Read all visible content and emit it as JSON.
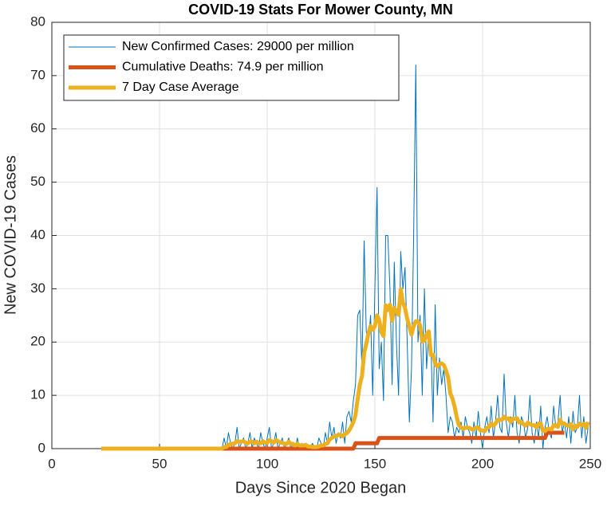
{
  "chart_data": {
    "type": "line",
    "title": "COVID-19 Stats For Mower County, MN",
    "xlabel": "Days Since 2020 Began",
    "ylabel": "New COVID-19 Cases",
    "x": [
      23,
      24,
      25,
      26,
      27,
      28,
      29,
      30,
      31,
      32,
      33,
      34,
      35,
      36,
      37,
      38,
      39,
      40,
      41,
      42,
      43,
      44,
      45,
      46,
      47,
      48,
      49,
      50,
      51,
      52,
      53,
      54,
      55,
      56,
      57,
      58,
      59,
      60,
      61,
      62,
      63,
      64,
      65,
      66,
      67,
      68,
      69,
      70,
      71,
      72,
      73,
      74,
      75,
      76,
      77,
      78,
      79,
      80,
      81,
      82,
      83,
      84,
      85,
      86,
      87,
      88,
      89,
      90,
      91,
      92,
      93,
      94,
      95,
      96,
      97,
      98,
      99,
      100,
      101,
      102,
      103,
      104,
      105,
      106,
      107,
      108,
      109,
      110,
      111,
      112,
      113,
      114,
      115,
      116,
      117,
      118,
      119,
      120,
      121,
      122,
      123,
      124,
      125,
      126,
      127,
      128,
      129,
      130,
      131,
      132,
      133,
      134,
      135,
      136,
      137,
      138,
      139,
      140,
      141,
      142,
      143,
      144,
      145,
      146,
      147,
      148,
      149,
      150,
      151,
      152,
      153,
      154,
      155,
      156,
      157,
      158,
      159,
      160,
      161,
      162,
      163,
      164,
      165,
      166,
      167,
      168,
      169,
      170,
      171,
      172,
      173,
      174,
      175,
      176,
      177,
      178,
      179,
      180,
      181,
      182,
      183,
      184,
      185,
      186,
      187,
      188,
      189,
      190,
      191,
      192,
      193,
      194,
      195,
      196,
      197,
      198,
      199,
      200,
      201,
      202,
      203,
      204,
      205,
      206,
      207,
      208,
      209,
      210,
      211,
      212,
      213,
      214,
      215,
      216,
      217,
      218,
      219,
      220,
      221,
      222,
      223,
      224,
      225,
      226,
      227,
      228,
      229,
      230,
      231,
      232,
      233,
      234,
      235,
      236,
      237,
      238,
      239,
      240,
      241,
      242,
      243,
      244,
      245,
      246,
      247,
      248,
      249
    ],
    "series": [
      {
        "name": "New Confirmed Cases: 29000 per million",
        "color": "#0072BD",
        "width": 1,
        "values": [
          0,
          0,
          0,
          0,
          0,
          0,
          0,
          0,
          0,
          0,
          0,
          0,
          0,
          0,
          0,
          0,
          0,
          0,
          0,
          0,
          0,
          0,
          0,
          0,
          0,
          0,
          0,
          0,
          0,
          0,
          0,
          0,
          0,
          0,
          0,
          0,
          0,
          0,
          0,
          0,
          0,
          0,
          0,
          0,
          0,
          0,
          0,
          0,
          0,
          0,
          0,
          0,
          0,
          0,
          0,
          0,
          0,
          2,
          0,
          3,
          1,
          0,
          1,
          4,
          0,
          1,
          2,
          0,
          1,
          3,
          0,
          2,
          1,
          0,
          3,
          1,
          0,
          2,
          4,
          0,
          1,
          3,
          0,
          1,
          2,
          0,
          1,
          2,
          0,
          1,
          0,
          2,
          0,
          1,
          0,
          1,
          0,
          0,
          1,
          0,
          0,
          2,
          1,
          0,
          3,
          1,
          5,
          2,
          4,
          1,
          3,
          2,
          5,
          1,
          6,
          7,
          5,
          9,
          12,
          25,
          26,
          15,
          39,
          22,
          20,
          25,
          10,
          30,
          49,
          15,
          20,
          9,
          40,
          40,
          30,
          12,
          35,
          20,
          10,
          37,
          30,
          34,
          20,
          5,
          15,
          40,
          72,
          20,
          25,
          10,
          30,
          15,
          22,
          20,
          5,
          27,
          10,
          17,
          12,
          15,
          10,
          3,
          6,
          5,
          2,
          4,
          3,
          5,
          2,
          6,
          4,
          3,
          1,
          5,
          2,
          7,
          3,
          0,
          4,
          6,
          3,
          8,
          2,
          5,
          10,
          4,
          3,
          14,
          5,
          2,
          6,
          4,
          10,
          3,
          1,
          6,
          5,
          2,
          4,
          10,
          3,
          1,
          5,
          2,
          8,
          0,
          4,
          6,
          3,
          2,
          8,
          4,
          5,
          10,
          3,
          5,
          2,
          6,
          1,
          7,
          3,
          4,
          10,
          2,
          6,
          1,
          4
        ]
      },
      {
        "name": "Cumulative Deaths: 74.9 per million",
        "color": "#D95319",
        "width": 5,
        "values": [
          0,
          0,
          0,
          0,
          0,
          0,
          0,
          0,
          0,
          0,
          0,
          0,
          0,
          0,
          0,
          0,
          0,
          0,
          0,
          0,
          0,
          0,
          0,
          0,
          0,
          0,
          0,
          0,
          0,
          0,
          0,
          0,
          0,
          0,
          0,
          0,
          0,
          0,
          0,
          0,
          0,
          0,
          0,
          0,
          0,
          0,
          0,
          0,
          0,
          0,
          0,
          0,
          0,
          0,
          0,
          0,
          0,
          0,
          0,
          0,
          0,
          0,
          0,
          0,
          0,
          0,
          0,
          0,
          0,
          0,
          0,
          0,
          0,
          0,
          0,
          0,
          0,
          0,
          0,
          0,
          0,
          0,
          0,
          0,
          0,
          0,
          0,
          0,
          0,
          0,
          0,
          0,
          0,
          0,
          0,
          0,
          0,
          0,
          0,
          0,
          0,
          0,
          0,
          0,
          0,
          0,
          0,
          0,
          0,
          0,
          0,
          0,
          0,
          0,
          0,
          0,
          0,
          0,
          1,
          1,
          1,
          1,
          1,
          1,
          1,
          1,
          1,
          1,
          1,
          2,
          2,
          2,
          2,
          2,
          2,
          2,
          2,
          2,
          2,
          2,
          2,
          2,
          2,
          2,
          2,
          2,
          2,
          2,
          2,
          2,
          2,
          2,
          2,
          2,
          2,
          2,
          2,
          2,
          2,
          2,
          2,
          2,
          2,
          2,
          2,
          2,
          2,
          2,
          2,
          2,
          2,
          2,
          2,
          2,
          2,
          2,
          2,
          2,
          2,
          2,
          2,
          2,
          2,
          2,
          2,
          2,
          2,
          2,
          2,
          2,
          2,
          2,
          2,
          2,
          2,
          2,
          2,
          2,
          2,
          2,
          2,
          2,
          2,
          2,
          2,
          2,
          2,
          3,
          3,
          3,
          3,
          3,
          3,
          3,
          3,
          3,
          null,
          null,
          null,
          null,
          null,
          null,
          null,
          null,
          null,
          null,
          null
        ]
      },
      {
        "name": "7 Day Case Average",
        "color": "#EDB120",
        "width": 5,
        "values": [
          0,
          0,
          0,
          0,
          0,
          0,
          0,
          0,
          0,
          0,
          0,
          0,
          0,
          0,
          0,
          0,
          0,
          0,
          0,
          0,
          0,
          0,
          0,
          0,
          0,
          0,
          0,
          0,
          0,
          0,
          0,
          0,
          0,
          0,
          0,
          0,
          0,
          0,
          0,
          0,
          0,
          0,
          0,
          0,
          0,
          0,
          0,
          0,
          0,
          0,
          0,
          0,
          0,
          0,
          0,
          0,
          0,
          0.3,
          0.3,
          0.7,
          0.9,
          0.9,
          1,
          1.4,
          1.3,
          1.3,
          1.4,
          1.1,
          1,
          1.3,
          1.3,
          1,
          1.3,
          1,
          1,
          1.4,
          1.1,
          1.1,
          1.6,
          1.4,
          1.1,
          1.6,
          1.4,
          1.1,
          1.1,
          0.9,
          0.9,
          1.3,
          0.9,
          0.9,
          0.6,
          0.9,
          0.6,
          0.6,
          0.6,
          0.7,
          0.4,
          0.4,
          0.3,
          0.3,
          0.3,
          0.4,
          0.6,
          0.6,
          0.9,
          1,
          1.7,
          2,
          2.3,
          2.3,
          2.6,
          2.6,
          2.3,
          2.7,
          2.9,
          3.4,
          4.1,
          5,
          6.3,
          9.3,
          12,
          13.6,
          17.9,
          19.7,
          21.6,
          23,
          22.3,
          23,
          25,
          24.1,
          21.9,
          21.1,
          26.9,
          26,
          27,
          24,
          26.4,
          25.7,
          25.1,
          29.9,
          27.4,
          26.4,
          24.4,
          22.9,
          21.4,
          23,
          23.9,
          23.9,
          23.1,
          20.1,
          20.3,
          21.4,
          22,
          17.6,
          17.6,
          15.9,
          15.4,
          15.9,
          16,
          15.7,
          14.7,
          13.4,
          10.4,
          9.4,
          7.9,
          5.9,
          4.4,
          4,
          3.7,
          3.9,
          3.9,
          3.9,
          3.6,
          3.7,
          3.9,
          4,
          3.4,
          3.4,
          3.3,
          3.9,
          4,
          4.7,
          4.3,
          4.7,
          5.4,
          5.4,
          5.4,
          6,
          5.6,
          5.7,
          5,
          5.6,
          5.6,
          5.7,
          4.9,
          5,
          4.6,
          4.3,
          4.9,
          4.6,
          4.4,
          4.4,
          4,
          4.7,
          4.7,
          3.3,
          3.3,
          3.7,
          3.7,
          3.6,
          4.4,
          4.3,
          4.1,
          5.4,
          4.7,
          4.7,
          4.3,
          4.3,
          4.6,
          3.6,
          4.3,
          4.1,
          4.7,
          4.4,
          4.7,
          3.9,
          5
        ]
      }
    ],
    "xlim": [
      0,
      250
    ],
    "xticks": [
      0,
      50,
      100,
      150,
      200,
      250
    ],
    "ylim": [
      0,
      80
    ],
    "yticks": [
      0,
      10,
      20,
      30,
      40,
      50,
      60,
      70,
      80
    ],
    "grid": true,
    "legend": "northwest"
  }
}
